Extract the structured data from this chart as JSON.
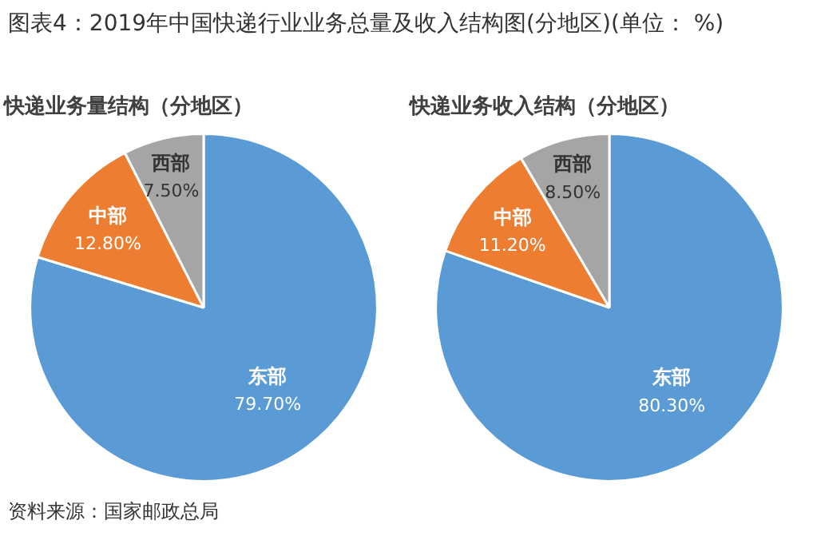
{
  "chart_data": [
    {
      "type": "pie",
      "title": "图表4：2019年中国快递行业业务总量及收入结构图(分地区)(单位： %)",
      "subtitle": "快递业务量结构（分地区）",
      "categories": [
        "东部",
        "中部",
        "西部"
      ],
      "values": [
        79.7,
        12.8,
        7.5
      ],
      "colors": [
        "#5b9bd5",
        "#ed7d31",
        "#a5a5a5"
      ],
      "value_labels": [
        "79.70%",
        "12.80%",
        "7.50%"
      ],
      "annotations": [
        "资料来源：国家邮政总局"
      ]
    },
    {
      "type": "pie",
      "subtitle": "快递业务收入结构（分地区）",
      "categories": [
        "东部",
        "中部",
        "西部"
      ],
      "values": [
        80.3,
        11.2,
        8.5
      ],
      "colors": [
        "#5b9bd5",
        "#ed7d31",
        "#a5a5a5"
      ],
      "value_labels": [
        "80.30%",
        "11.20%",
        "8.50%"
      ]
    }
  ]
}
